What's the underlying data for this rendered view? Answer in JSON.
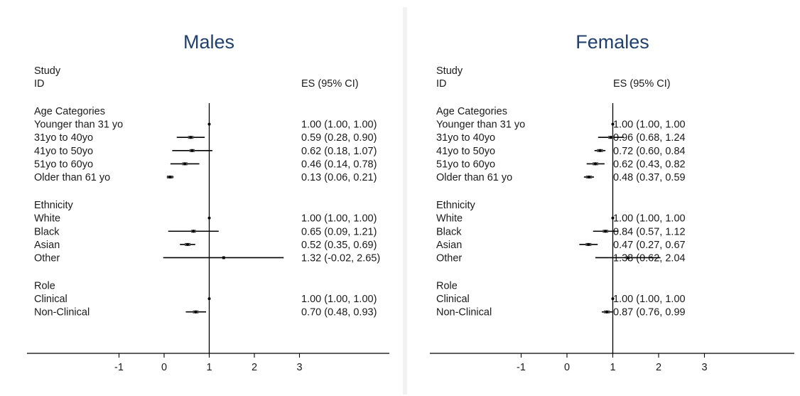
{
  "chart_data": [
    {
      "type": "forest",
      "title": "Males",
      "col_study": "Study",
      "col_id": "ID",
      "col_es": "ES (95% CI)",
      "x_ticks": [
        -1,
        0,
        1,
        2,
        3
      ],
      "x_tick_labels": [
        "-1",
        "0",
        "1",
        "2",
        "3"
      ],
      "reference_line": 1,
      "groups": [
        {
          "name": "Age Categories",
          "rows": [
            {
              "label": "Younger than 31 yo",
              "es": 1.0,
              "lo": 1.0,
              "hi": 1.0,
              "text": "1.00 (1.00, 1.00)"
            },
            {
              "label": "31yo to 40yo",
              "es": 0.59,
              "lo": 0.28,
              "hi": 0.9,
              "text": "0.59 (0.28, 0.90)"
            },
            {
              "label": "41yo to 50yo",
              "es": 0.62,
              "lo": 0.18,
              "hi": 1.07,
              "text": "0.62 (0.18, 1.07)"
            },
            {
              "label": "51yo to 60yo",
              "es": 0.46,
              "lo": 0.14,
              "hi": 0.78,
              "text": "0.46 (0.14, 0.78)"
            },
            {
              "label": "Older than 61 yo",
              "es": 0.13,
              "lo": 0.06,
              "hi": 0.21,
              "text": "0.13 (0.06, 0.21)"
            }
          ]
        },
        {
          "name": "Ethnicity",
          "rows": [
            {
              "label": "White",
              "es": 1.0,
              "lo": 1.0,
              "hi": 1.0,
              "text": "1.00 (1.00, 1.00)"
            },
            {
              "label": "Black",
              "es": 0.65,
              "lo": 0.09,
              "hi": 1.21,
              "text": "0.65 (0.09, 1.21)"
            },
            {
              "label": "Asian",
              "es": 0.52,
              "lo": 0.35,
              "hi": 0.69,
              "text": "0.52 (0.35, 0.69)"
            },
            {
              "label": "Other",
              "es": 1.32,
              "lo": -0.02,
              "hi": 2.65,
              "text": "1.32 (-0.02, 2.65)"
            }
          ]
        },
        {
          "name": "Role",
          "rows": [
            {
              "label": "Clinical",
              "es": 1.0,
              "lo": 1.0,
              "hi": 1.0,
              "text": "1.00 (1.00, 1.00)"
            },
            {
              "label": "Non-Clinical",
              "es": 0.7,
              "lo": 0.48,
              "hi": 0.93,
              "text": "0.70 (0.48, 0.93)"
            }
          ]
        }
      ]
    },
    {
      "type": "forest",
      "title": "Females",
      "col_study": "Study",
      "col_id": "ID",
      "col_es": "ES (95% CI)",
      "x_ticks": [
        -1,
        0,
        1,
        2,
        3
      ],
      "x_tick_labels": [
        "-1",
        "0",
        "1",
        "2",
        "3"
      ],
      "reference_line": 1,
      "groups": [
        {
          "name": "Age Categories",
          "rows": [
            {
              "label": "Younger than 31 yo",
              "es": 1.0,
              "lo": 1.0,
              "hi": 1.0,
              "text": "1.00 (1.00, 1.00"
            },
            {
              "label": "31yo to 40yo",
              "es": 0.96,
              "lo": 0.68,
              "hi": 1.24,
              "text": "0.96 (0.68, 1.24"
            },
            {
              "label": "41yo to 50yo",
              "es": 0.72,
              "lo": 0.6,
              "hi": 0.84,
              "text": "0.72 (0.60, 0.84"
            },
            {
              "label": "51yo to 60yo",
              "es": 0.62,
              "lo": 0.43,
              "hi": 0.82,
              "text": "0.62 (0.43, 0.82"
            },
            {
              "label": "Older than 61 yo",
              "es": 0.48,
              "lo": 0.37,
              "hi": 0.59,
              "text": "0.48 (0.37, 0.59"
            }
          ]
        },
        {
          "name": "Ethnicity",
          "rows": [
            {
              "label": "White",
              "es": 1.0,
              "lo": 1.0,
              "hi": 1.0,
              "text": "1.00 (1.00, 1.00"
            },
            {
              "label": "Black",
              "es": 0.84,
              "lo": 0.57,
              "hi": 1.12,
              "text": "0.84 (0.57, 1.12"
            },
            {
              "label": "Asian",
              "es": 0.47,
              "lo": 0.27,
              "hi": 0.67,
              "text": "0.47 (0.27, 0.67"
            },
            {
              "label": "Other",
              "es": 1.33,
              "lo": 0.62,
              "hi": 2.04,
              "text": "1.33 (0.62, 2.04"
            }
          ]
        },
        {
          "name": "Role",
          "rows": [
            {
              "label": "Clinical",
              "es": 1.0,
              "lo": 1.0,
              "hi": 1.0,
              "text": "1.00 (1.00, 1.00"
            },
            {
              "label": "Non-Clinical",
              "es": 0.87,
              "lo": 0.76,
              "hi": 0.99,
              "text": "0.87 (0.76, 0.99"
            }
          ]
        }
      ]
    }
  ],
  "colors": {
    "title": "#22406e",
    "text": "#1a1a1a",
    "ink": "#000000",
    "divider": "#f2f2f2"
  }
}
